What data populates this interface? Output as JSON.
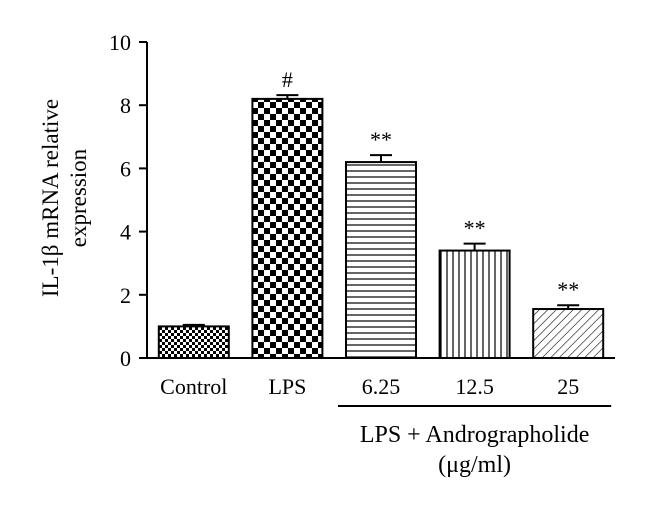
{
  "chart_data": {
    "type": "bar",
    "categories": [
      "Control",
      "LPS",
      "6.25",
      "12.5",
      "25"
    ],
    "values": [
      1.0,
      8.2,
      6.2,
      3.4,
      1.55
    ],
    "errors": [
      0.05,
      0.12,
      0.22,
      0.22,
      0.12
    ],
    "significance": [
      "",
      "#",
      "**",
      "**",
      "**"
    ],
    "patterns": [
      "checker-fine",
      "checker-coarse",
      "horizontal-lines",
      "vertical-lines",
      "diagonal-lines"
    ],
    "ylabel_line1": "IL-1β mRNA relative",
    "ylabel_line2": "expression",
    "xlabel": "",
    "ylim": [
      0,
      10
    ],
    "yticks": [
      0,
      2,
      4,
      6,
      8,
      10
    ],
    "group": {
      "label_line1": "LPS + Andrographolide",
      "label_line2": "(μg/ml)",
      "categories": [
        "6.25",
        "12.5",
        "25"
      ]
    },
    "grid": false,
    "legend": "none"
  }
}
